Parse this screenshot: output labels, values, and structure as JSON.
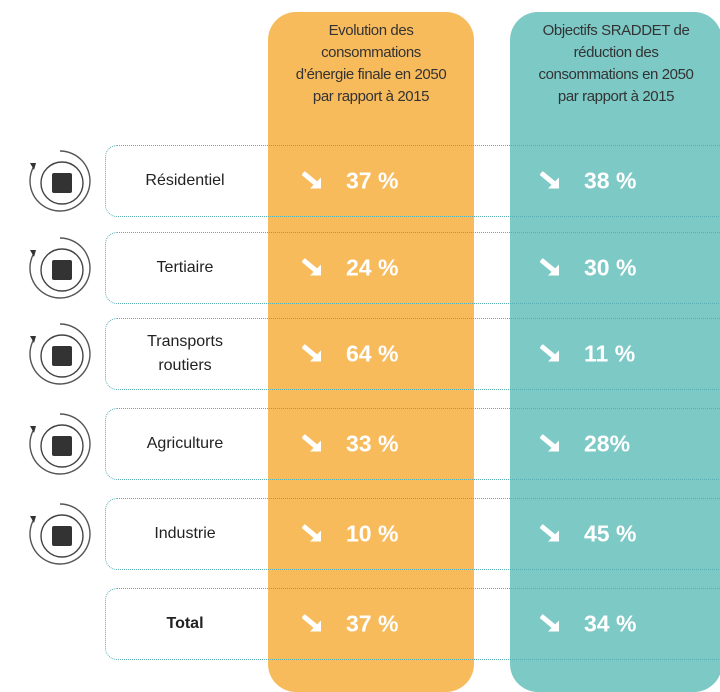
{
  "header": {
    "evolution": [
      "Evolution des",
      "consommations",
      "d’énergie finale en 2050",
      "par rapport à 2015"
    ],
    "objectifs": [
      "Objectifs SRADDET de",
      "réduction des",
      "consommations en 2050",
      "par rapport à 2015"
    ]
  },
  "rows": [
    {
      "sector": "Résidentiel",
      "evolution": "37 %",
      "objectif": "38 %"
    },
    {
      "sector": "Tertiaire",
      "evolution": "24 %",
      "objectif": "30 %"
    },
    {
      "sector": "Transports routiers",
      "evolution": "64 %",
      "objectif": "11 %"
    },
    {
      "sector": "Agriculture",
      "evolution": "33 %",
      "objectif": "28%"
    },
    {
      "sector": "Industrie",
      "evolution": "10 %",
      "objectif": "45 %"
    },
    {
      "sector": "Total",
      "evolution": "37 %",
      "objectif": "34 %"
    }
  ]
}
